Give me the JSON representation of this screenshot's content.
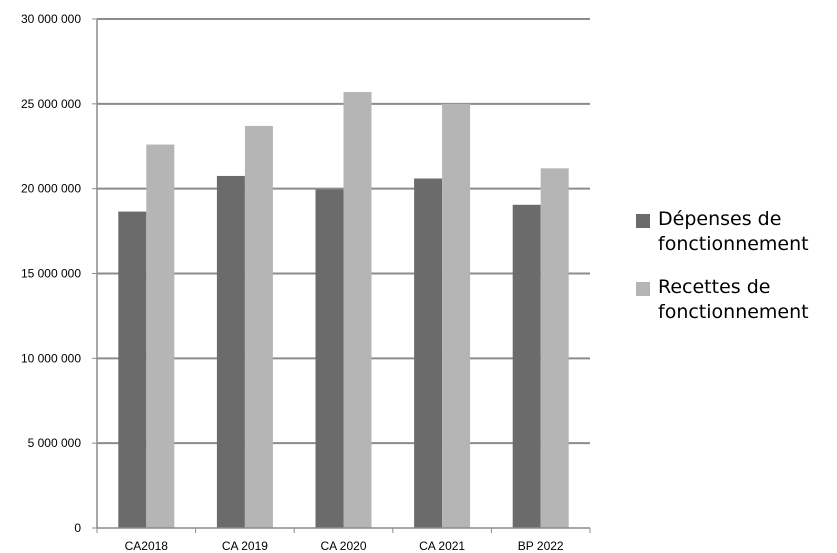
{
  "chart_data": {
    "type": "bar",
    "categories": [
      "CA2018",
      "CA 2019",
      "CA 2020",
      "CA 2021",
      "BP 2022"
    ],
    "series": [
      {
        "name": "Dépenses de fonctionnement",
        "color": "#6b6b6b",
        "values": [
          18650000,
          20750000,
          19950000,
          20600000,
          19050000
        ]
      },
      {
        "name": "Recettes de fonctionnement",
        "color": "#b5b5b5",
        "values": [
          22600000,
          23700000,
          25700000,
          25000000,
          21200000
        ]
      }
    ],
    "ylim": [
      0,
      30000000
    ],
    "yticks": [
      0,
      5000000,
      10000000,
      15000000,
      20000000,
      25000000,
      30000000
    ],
    "ytick_labels": [
      "0",
      "5 000 000",
      "10 000 000",
      "15 000 000",
      "20 000 000",
      "25 000 000",
      "30 000 000"
    ],
    "grid": true,
    "legend_position": "right",
    "title": "",
    "xlabel": "",
    "ylabel": ""
  }
}
